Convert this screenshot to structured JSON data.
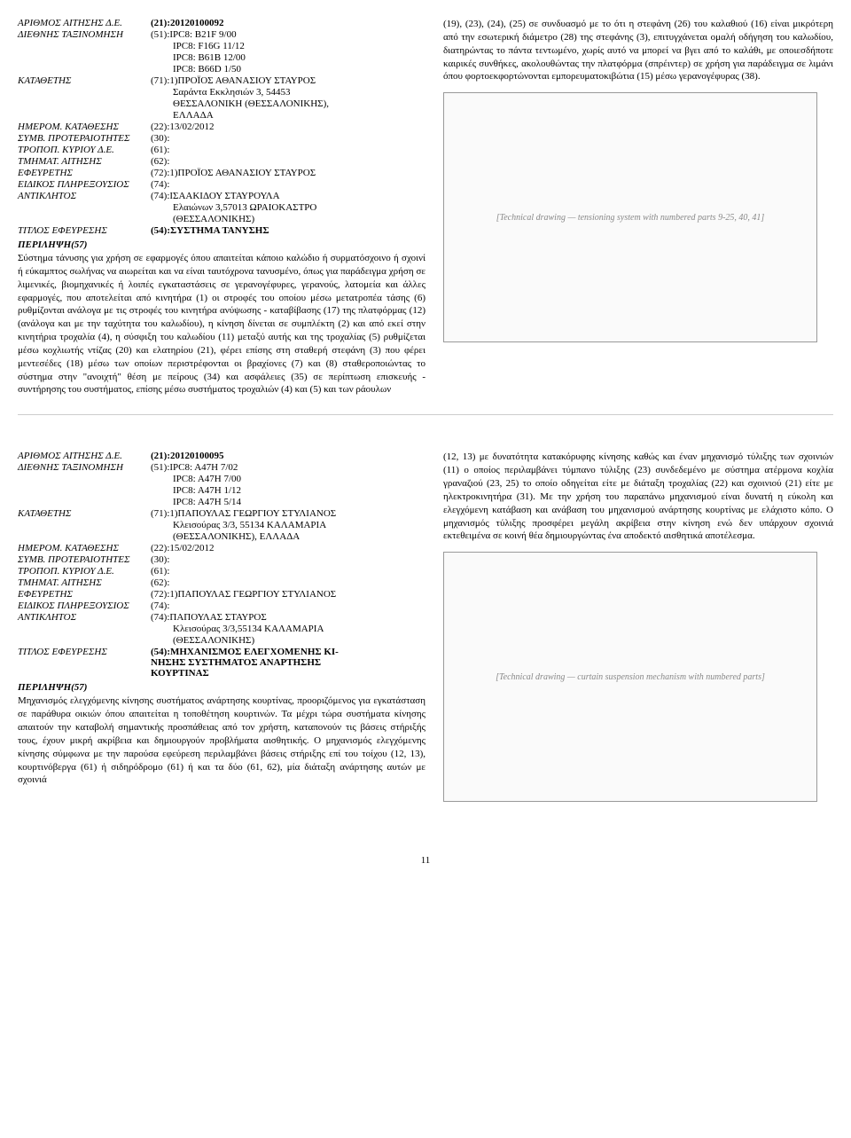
{
  "page_number": "11",
  "records": [
    {
      "fields": {
        "app_num_label": "ΑΡΙΘΜΟΣ ΑΙΤΗΣΗΣ Δ.Ε.",
        "app_num_value": "(21):20120100092",
        "class_label": "ΔΙΕΘΝΗΣ ΤΑΞΙΝΟΜΗΣΗ",
        "class_value": "(51):IPC8: B21F  9/00",
        "ipc_lines": [
          "IPC8: F16G  11/12",
          "IPC8: B61B  12/00",
          "IPC8: B66D  1/50"
        ],
        "applicant_label": "ΚΑΤΑΘΕΤΗΣ",
        "applicant_value": "(71):1)ΠΡΟΪΟΣ ΑΘΑΝΑΣΙΟΥ ΣΤΑΥΡΟΣ",
        "applicant_address": [
          "Σαράντα Εκκλησιών 3, 54453",
          "ΘΕΣΣΑΛΟΝΙΚΗ (ΘΕΣΣΑΛΟΝΙΚΗΣ),",
          "ΕΛΛΑΔΑ"
        ],
        "filing_date_label": "ΗΜΕΡΟΜ. ΚΑΤΑΘΕΣΗΣ",
        "filing_date_value": "(22):13/02/2012",
        "priority_label": "ΣΥΜΒ. ΠΡΟΤΕΡΑΙΟΤΗΤΕΣ",
        "priority_value": "(30):",
        "amend_label": "ΤΡΟΠΟΠ. ΚΥΡΙΟΥ Δ.Ε.",
        "amend_value": "(61):",
        "div_label": "ΤΜΗΜΑΤ. ΑΙΤΗΣΗΣ",
        "div_value": "(62):",
        "inventor_label": "ΕΦΕΥΡΕΤΗΣ",
        "inventor_value": "(72):1)ΠΡΟΪΟΣ ΑΘΑΝΑΣΙΟΥ ΣΤΑΥΡΟΣ",
        "agent_label": "ΕΙΔΙΚΟΣ ΠΛΗΡΕΞΟΥΣΙΟΣ",
        "agent_value": "(74):",
        "contact_label": "ΑΝΤΙΚΛΗΤΟΣ",
        "contact_value": "(74):ΙΣΑΑΚΙΔΟΥ ΣΤΑΥΡΟΥΛΑ",
        "contact_address": [
          "Ελαιώνων 3,57013 ΩΡΑΙΟΚΑΣΤΡΟ",
          "(ΘΕΣΣΑΛΟΝΙΚΗΣ)"
        ],
        "title_label": "ΤΙΤΛΟΣ ΕΦΕΥΡΕΣΗΣ",
        "title_value": "(54):ΣΥΣΤΗΜΑ ΤΑΝΥΣΗΣ",
        "abstract_label": "ΠΕΡΙΛΗΨΗ(57)"
      },
      "abstract": "Σύστημα τάνυσης για χρήση σε εφαρμογές όπου απαιτείται κάποιο καλώδιο ή συρματόσχοινο ή σχοινί ή εύκαμπτος σωλήνας να αιωρείται και να είναι ταυτόχρονα τανυσμένο, όπως για παράδειγμα χρήση σε λιμενικές, βιομηχανικές ή λοιπές εγκαταστάσεις σε γερανογέφυρες, γερανούς, λατομεία και άλλες εφαρμογές, που αποτελείται από κινητήρα (1) οι στροφές του οποίου μέσω μετατροπέα τάσης (6) ρυθμίζονται ανάλογα με τις στροφές του κινητήρα ανύψωσης - καταβίβασης (17) της πλατφόρμας (12) (ανάλογα και με την ταχύτητα του καλωδίου), η κίνηση δίνεται σε συμπλέκτη (2) και από εκεί στην κινητήρια τροχαλία (4), η σύσφιξη του καλωδίου (11) μεταξύ αυτής και της τροχαλίας (5) ρυθμίζεται μέσω κοχλιωτής ντίζας (20) και ελατηρίου (21), φέρει επίσης στη σταθερή στεφάνη (3) που φέρει μεντεσέδες (18) μέσω των οποίων περιστρέφονται οι βραχίονες (7) και (8) σταθεροποιώντας το σύστημα στην \"ανοιχτή\" θέση με πείρους (34) και ασφάλειες (35) σε περίπτωση επισκευής - συντήρησης του συστήματος, επίσης μέσω συστήματος τροχαλιών (4) και (5) και των ράουλων",
      "continuation": "(19), (23), (24), (25) σε συνδυασμό με το ότι η στεφάνη (26) του καλαθιού (16) είναι μικρότερη από την εσωτερική διάμετρο (28) της στεφάνης (3), επιτυγχάνεται ομαλή οδήγηση του καλωδίου, διατηρώντας το πάντα τεντωμένο, χωρίς αυτό να μπορεί να βγει από το καλάθι, με οποιεσδήποτε καιρικές συνθήκες, ακολουθώντας την πλατφόρμα (σπρέιντερ) σε χρήση για παράδειγμα σε λιμάνι όπου φορτοεκφορτώνονται εμπορευματοκιβώτια (15) μέσω γερανογέφυρας (38).",
      "figure_caption": "[Technical drawing — tensioning system with numbered parts 9-25, 40, 41]"
    },
    {
      "fields": {
        "app_num_label": "ΑΡΙΘΜΟΣ ΑΙΤΗΣΗΣ Δ.Ε.",
        "app_num_value": "(21):20120100095",
        "class_label": "ΔΙΕΘΝΗΣ ΤΑΞΙΝΟΜΗΣΗ",
        "class_value": "(51):IPC8: A47H  7/02",
        "ipc_lines": [
          "IPC8: A47H  7/00",
          "IPC8: A47H  1/12",
          "IPC8: A47H  5/14"
        ],
        "applicant_label": "ΚΑΤΑΘΕΤΗΣ",
        "applicant_value": "(71):1)ΠΑΠΟΥΛΑΣ ΓΕΩΡΓΙΟΥ ΣΤΥΛΙΑΝΟΣ",
        "applicant_address": [
          "Κλεισούρας 3/3, 55134 ΚΑΛΑΜΑΡΙΑ",
          "(ΘΕΣΣΑΛΟΝΙΚΗΣ), ΕΛΛΑΔΑ"
        ],
        "filing_date_label": "ΗΜΕΡΟΜ. ΚΑΤΑΘΕΣΗΣ",
        "filing_date_value": "(22):15/02/2012",
        "priority_label": "ΣΥΜΒ. ΠΡΟΤΕΡΑΙΟΤΗΤΕΣ",
        "priority_value": "(30):",
        "amend_label": "ΤΡΟΠΟΠ. ΚΥΡΙΟΥ Δ.Ε.",
        "amend_value": "(61):",
        "div_label": "ΤΜΗΜΑΤ. ΑΙΤΗΣΗΣ",
        "div_value": "(62):",
        "inventor_label": "ΕΦΕΥΡΕΤΗΣ",
        "inventor_value": "(72):1)ΠΑΠΟΥΛΑΣ ΓΕΩΡΓΙΟΥ ΣΤΥΛΙΑΝΟΣ",
        "agent_label": "ΕΙΔΙΚΟΣ ΠΛΗΡΕΞΟΥΣΙΟΣ",
        "agent_value": "(74):",
        "contact_label": "ΑΝΤΙΚΛΗΤΟΣ",
        "contact_value": "(74):ΠΑΠΟΥΛΑΣ ΣΤΑΥΡΟΣ",
        "contact_address": [
          "Κλεισούρας 3/3,55134 ΚΑΛΑΜΑΡΙΑ",
          "(ΘΕΣΣΑΛΟΝΙΚΗΣ)"
        ],
        "title_label": "ΤΙΤΛΟΣ ΕΦΕΥΡΕΣΗΣ",
        "title_value": "(54):ΜΗΧΑΝΙΣΜΟΣ ΕΛΕΓΧΟΜΕΝΗΣ ΚΙ-\nΝΗΣΗΣ ΣΥΣΤΗΜΑΤΟΣ ΑΝΑΡΤΗΣΗΣ\nΚΟΥΡΤΙΝΑΣ",
        "abstract_label": "ΠΕΡΙΛΗΨΗ(57)"
      },
      "abstract": "Μηχανισμός ελεγχόμενης κίνησης συστήματος ανάρτησης κουρτίνας, προοριζόμενος για εγκατάσταση σε παράθυρα οικιών όπου απαιτείται η τοποθέτηση κουρτινών. Τα μέχρι τώρα συστήματα κίνησης απαιτούν την καταβολή σημαντικής προσπάθειας από τον χρήστη, καταπονούν τις βάσεις στήριξής τους, έχουν μικρή ακρίβεια και δημιουργούν προβλήματα αισθητικής. Ο μηχανισμός ελεγχόμενης κίνησης σύμφωνα με την παρούσα εφεύρεση περιλαμβάνει βάσεις στήριξης επί του τοίχου (12, 13), κουρτινόβεργα (61) ή σιδηρόδρομο (61) ή και τα δύο (61, 62), μία διάταξη ανάρτησης αυτών με σχοινιά",
      "continuation": "(12, 13) με δυνατότητα κατακόρυφης κίνησης καθώς και έναν μηχανισμό τύλιξης των σχοινιών (11) ο οποίος περιλαμβάνει τύμπανο τύλιξης (23) συνδεδεμένο με σύστημα ατέρμονα κοχλία γραναζιού (23, 25) το οποίο οδηγείται είτε με διάταξη τροχαλίας (22) και σχοινιού (21) είτε με ηλεκτροκινητήρα (31). Με την χρήση του παραπάνω μηχανισμού είναι δυνατή η εύκολη και ελεγχόμενη κατάβαση και ανάβαση του μηχανισμού ανάρτησης κουρτίνας με ελάχιστο κόπο. Ο μηχανισμός τύλιξης προσφέρει μεγάλη ακρίβεια στην κίνηση ενώ δεν υπάρχουν σχοινιά εκτεθειμένα σε κοινή θέα δημιουργώντας ένα αποδεκτό αισθητικά αποτέλεσμα.",
      "figure_caption": "[Technical drawing — curtain suspension mechanism with numbered parts]"
    }
  ]
}
